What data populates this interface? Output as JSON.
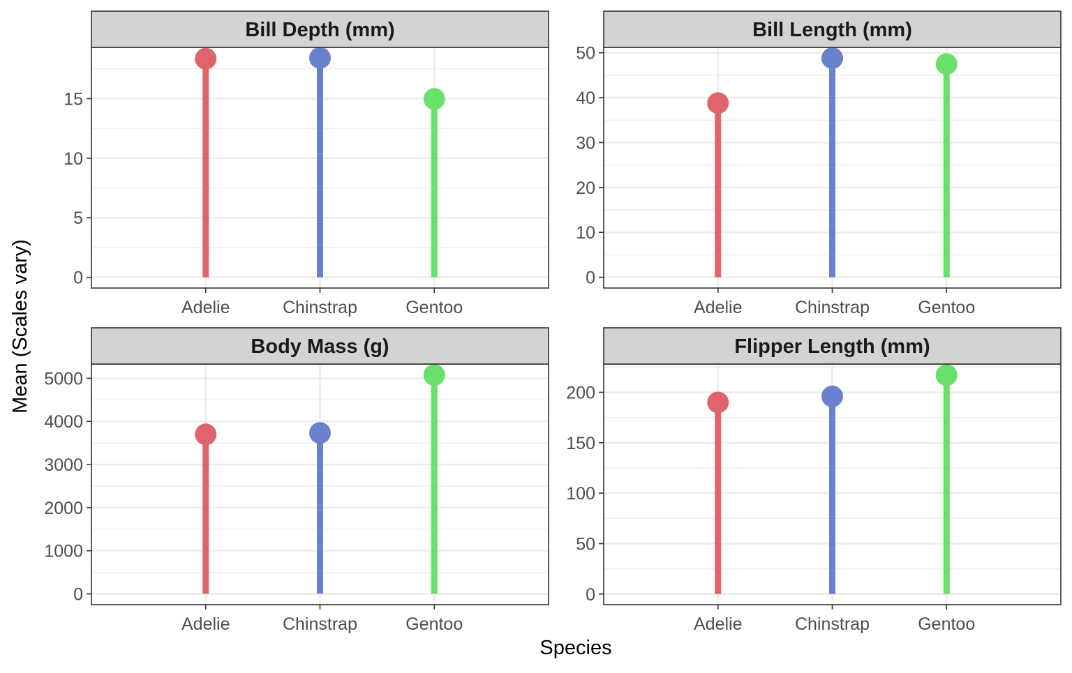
{
  "chart_data": {
    "type": "lollipop",
    "xlabel": "Species",
    "ylabel": "Mean (Scales vary)",
    "categories": [
      "Adelie",
      "Chinstrap",
      "Gentoo"
    ],
    "colors": {
      "Adelie": "#DF646B",
      "Chinstrap": "#6A82CD",
      "Gentoo": "#69E06A"
    },
    "strip_background": "#D3D3D3",
    "gridline_color": "#EBEBEB",
    "grid": true,
    "legend": "none",
    "panels": [
      {
        "title": "Bill Depth (mm)",
        "values": [
          18.35,
          18.42,
          14.98
        ],
        "ylim": [
          -0.9,
          19.3
        ],
        "yticks": [
          0,
          5,
          10,
          15
        ]
      },
      {
        "title": "Bill Length (mm)",
        "values": [
          38.8,
          48.8,
          47.5
        ],
        "ylim": [
          -2.4,
          51.2
        ],
        "yticks": [
          0,
          10,
          20,
          30,
          40,
          50
        ]
      },
      {
        "title": "Body Mass (g)",
        "values": [
          3700,
          3733,
          5076
        ],
        "ylim": [
          -250,
          5330
        ],
        "yticks": [
          0,
          1000,
          2000,
          3000,
          4000,
          5000
        ]
      },
      {
        "title": "Flipper Length (mm)",
        "values": [
          190,
          196,
          217
        ],
        "ylim": [
          -10.5,
          228
        ],
        "yticks": [
          0,
          50,
          100,
          150,
          200
        ]
      }
    ]
  }
}
